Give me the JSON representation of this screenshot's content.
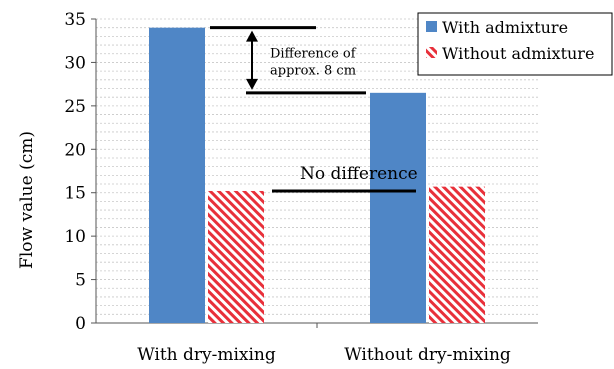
{
  "chart_data": {
    "type": "bar",
    "categories": [
      "With dry-mixing",
      "Without dry-mixing"
    ],
    "series": [
      {
        "name": "With admixture",
        "values": [
          34,
          26.5
        ],
        "color": "#4f86c6",
        "pattern": "solid"
      },
      {
        "name": "Without admixture",
        "values": [
          15.2,
          15.7
        ],
        "color": "#e8303a",
        "pattern": "diagonal-hatch"
      }
    ],
    "ylabel": "Flow value (cm)",
    "ylim": [
      0,
      35
    ],
    "yticks": [
      0,
      5,
      10,
      15,
      20,
      25,
      30,
      35
    ],
    "grid": "minor-dashed",
    "legend": "top-right",
    "annotations": {
      "difference_line1": "Difference of",
      "difference_line2": "approx. 8 cm",
      "no_difference": "No difference",
      "difference_upper_y": 34,
      "difference_lower_y": 26.5,
      "no_difference_y": 15.2
    }
  }
}
